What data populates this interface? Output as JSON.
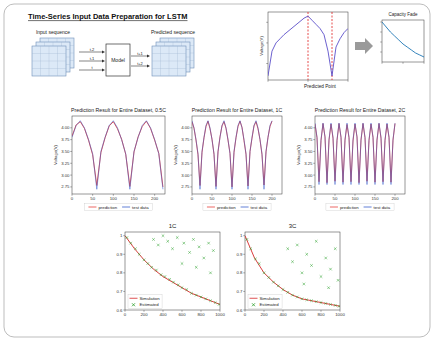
{
  "slide_title": "Time-Series Input Data Preparation for LSTM",
  "diagram": {
    "input_label": "Input sequence",
    "model_label": "Model",
    "output_label": "Predicted sequence",
    "input_steps": [
      "t-2",
      "t-1",
      "t"
    ],
    "output_steps": [
      "t+1",
      "t+2"
    ]
  },
  "chart_data": [
    {
      "type": "line",
      "y_label": "Voltage(V)",
      "annotation": "Predicted Point",
      "x": [
        0,
        5,
        10,
        15,
        20,
        25,
        30,
        35,
        40,
        45,
        50,
        55,
        60,
        65,
        70,
        75,
        80,
        85,
        90,
        95,
        100
      ],
      "series": [
        {
          "color": "#5b4fc9",
          "values": [
            2.7,
            3.3,
            3.5,
            3.6,
            3.7,
            3.78,
            3.86,
            3.94,
            4.02,
            4.1,
            4.15,
            4.05,
            3.95,
            3.85,
            3.7,
            3.3,
            2.7,
            3.4,
            3.6,
            3.75,
            3.85
          ]
        }
      ],
      "reference_lines_x": [
        50,
        80
      ],
      "xlim": [
        0,
        100
      ],
      "ylim": [
        2.6,
        4.25
      ],
      "xticks": [
        0,
        50,
        100
      ],
      "yticks": [
        3,
        3.5,
        4
      ],
      "tick_labels": false
    },
    {
      "type": "line",
      "title": "Capacity Fade",
      "x": [
        0,
        100,
        200,
        300,
        400,
        500,
        600,
        700,
        800,
        900,
        1000
      ],
      "series": [
        {
          "color": "#1f77b4",
          "values": [
            1.0,
            0.95,
            0.9,
            0.86,
            0.82,
            0.78,
            0.75,
            0.72,
            0.69,
            0.67,
            0.65
          ]
        }
      ],
      "xlim": [
        0,
        1000
      ],
      "ylim": [
        0.6,
        1.02
      ],
      "xticks": [
        0,
        500,
        1000
      ],
      "yticks": [
        0.7,
        0.8,
        0.9,
        1
      ],
      "tick_labels": false
    },
    {
      "type": "line",
      "title": "Prediction Result for Entire Dataset, 0.5C",
      "y_label": "Voltage(V)",
      "legend": "bottom",
      "x": [
        0,
        10,
        20,
        30,
        40,
        50,
        60,
        70,
        80,
        90,
        100,
        110,
        120,
        130,
        140,
        150,
        160,
        170,
        180,
        190,
        200,
        210,
        220
      ],
      "series": [
        {
          "name": "prediction",
          "color": "#e8413c",
          "values": [
            3.82,
            4.06,
            4.13,
            3.99,
            3.74,
            3.43,
            2.78,
            3.48,
            3.79,
            4.04,
            4.13,
            3.98,
            3.76,
            3.44,
            2.76,
            3.49,
            3.81,
            4.03,
            4.14,
            3.99,
            3.74,
            3.46,
            2.75
          ]
        },
        {
          "name": "test data",
          "color": "#3a5fcd",
          "values": [
            3.8,
            4.05,
            4.15,
            4.0,
            3.75,
            3.45,
            2.7,
            3.5,
            3.8,
            4.05,
            4.15,
            4.0,
            3.75,
            3.45,
            2.7,
            3.5,
            3.8,
            4.05,
            4.15,
            4.0,
            3.75,
            3.45,
            2.7
          ]
        }
      ],
      "xlim": [
        0,
        225
      ],
      "ylim": [
        2.6,
        4.25
      ],
      "xticks": [
        0,
        50,
        100,
        150,
        200
      ],
      "yticks": [
        2.75,
        {
          "value": 3,
          "label": "3.00"
        },
        3.25,
        {
          "value": 3.5,
          "label": "3.50"
        },
        3.75,
        {
          "value": 4,
          "label": "4.00"
        }
      ]
    },
    {
      "type": "line",
      "title": "Prediction Result for Entire Dataset, 1C",
      "y_label": "Voltage(V)",
      "legend": "bottom",
      "x": [
        0,
        5,
        10,
        15,
        20,
        25,
        30,
        35,
        40,
        45,
        50,
        55,
        60,
        65,
        70,
        75,
        80,
        85,
        90,
        95,
        100,
        105,
        110,
        115,
        120,
        125,
        130,
        135,
        140,
        145,
        150,
        155,
        160,
        165,
        170,
        175,
        180,
        185,
        190,
        195,
        200
      ],
      "series": [
        {
          "name": "prediction",
          "color": "#e8413c",
          "values": [
            4.13,
            3.99,
            3.74,
            3.43,
            2.78,
            3.48,
            3.79,
            4.03,
            4.14,
            3.98,
            3.76,
            3.44,
            2.76,
            3.49,
            3.81,
            4.04,
            4.13,
            3.99,
            3.74,
            3.46,
            2.75,
            3.48,
            3.79,
            4.03,
            4.14,
            4.01,
            3.73,
            3.44,
            2.77,
            3.5,
            3.78,
            4.04,
            4.13,
            3.98,
            3.75,
            3.43,
            2.79,
            3.49,
            3.8,
            4.03,
            4.14
          ]
        },
        {
          "name": "test data",
          "color": "#3a5fcd",
          "values": [
            4.15,
            4.0,
            3.75,
            3.45,
            2.7,
            3.5,
            3.8,
            4.05,
            4.15,
            4.0,
            3.75,
            3.45,
            2.7,
            3.5,
            3.8,
            4.05,
            4.15,
            4.0,
            3.75,
            3.45,
            2.7,
            3.5,
            3.8,
            4.05,
            4.15,
            4.0,
            3.75,
            3.45,
            2.7,
            3.5,
            3.8,
            4.05,
            4.15,
            4.0,
            3.75,
            3.45,
            2.7,
            3.5,
            3.8,
            4.05,
            4.15
          ]
        }
      ],
      "xlim": [
        0,
        225
      ],
      "ylim": [
        2.6,
        4.25
      ],
      "xticks": [
        0,
        50,
        100,
        150,
        200
      ],
      "yticks": [
        2.75,
        {
          "value": 3,
          "label": "3.00"
        },
        3.25,
        {
          "value": 3.5,
          "label": "3.50"
        },
        3.75,
        {
          "value": 4,
          "label": "4.00"
        }
      ]
    },
    {
      "type": "line",
      "title": "Prediction Result for Entire Dataset, 2C",
      "y_label": "Voltage(V)",
      "legend": "bottom",
      "x": [
        0,
        5,
        10,
        15,
        20,
        25,
        30,
        35,
        40,
        45,
        50,
        55,
        60,
        65,
        70,
        75,
        80,
        85,
        90,
        95,
        100,
        105,
        110,
        115,
        120,
        125,
        130,
        135,
        140,
        145,
        150,
        155,
        160,
        165,
        170,
        175,
        180,
        185,
        190,
        195,
        200
      ],
      "series": [
        {
          "name": "prediction",
          "color": "#e8413c",
          "values": [
            4.08,
            3.79,
            2.86,
            3.73,
            4.09,
            3.81,
            2.84,
            3.74,
            4.08,
            3.78,
            2.87,
            3.73,
            4.09,
            3.8,
            2.85,
            3.74,
            4.07,
            3.79,
            2.86,
            3.72,
            4.08,
            3.81,
            2.84,
            3.74,
            4.09,
            3.79,
            2.87,
            3.73,
            4.08,
            3.8,
            2.85,
            3.74,
            4.09,
            3.78,
            2.86,
            3.73,
            4.08,
            3.8,
            2.85,
            3.74,
            4.09
          ]
        },
        {
          "name": "test data",
          "color": "#3a5fcd",
          "values": [
            4.1,
            3.8,
            2.8,
            3.75,
            4.1,
            3.8,
            2.8,
            3.75,
            4.1,
            3.8,
            2.8,
            3.75,
            4.1,
            3.8,
            2.8,
            3.75,
            4.1,
            3.8,
            2.8,
            3.75,
            4.1,
            3.8,
            2.8,
            3.75,
            4.1,
            3.8,
            2.8,
            3.75,
            4.1,
            3.8,
            2.8,
            3.75,
            4.1,
            3.8,
            2.8,
            3.75,
            4.1,
            3.8,
            2.8,
            3.75,
            4.1
          ]
        }
      ],
      "xlim": [
        0,
        225
      ],
      "ylim": [
        2.6,
        4.25
      ],
      "xticks": [
        0,
        50,
        100,
        150,
        200
      ],
      "yticks": [
        2.75,
        {
          "value": 3,
          "label": "3.00"
        },
        3.25,
        {
          "value": 3.5,
          "label": "3.50"
        },
        3.75,
        {
          "value": 4,
          "label": "4.00"
        }
      ]
    },
    {
      "type": "scatter",
      "title": "1C",
      "legend": "lower left",
      "series": [
        {
          "name": "Simulation",
          "type": "line",
          "color": "#d62728",
          "x": [
            0,
            100,
            200,
            300,
            400,
            500,
            600,
            700,
            800,
            900,
            1000
          ],
          "values": [
            1.0,
            0.93,
            0.87,
            0.82,
            0.78,
            0.75,
            0.72,
            0.69,
            0.67,
            0.65,
            0.63
          ]
        },
        {
          "name": "Estimated",
          "type": "scatter",
          "marker": "x",
          "color": "#2ca02c",
          "x": [
            20,
            60,
            110,
            150,
            200,
            240,
            280,
            330,
            380,
            420,
            470,
            510,
            560,
            600,
            650,
            700,
            750,
            800,
            850,
            900,
            950,
            990,
            300,
            350,
            400,
            450,
            500,
            550,
            620,
            680,
            720,
            780,
            830,
            880,
            930,
            600,
            750,
            900
          ],
          "values": [
            0.99,
            0.96,
            0.93,
            0.9,
            0.87,
            0.85,
            0.83,
            0.815,
            0.79,
            0.78,
            0.765,
            0.75,
            0.735,
            0.72,
            0.71,
            0.69,
            0.68,
            0.67,
            0.66,
            0.65,
            0.64,
            0.63,
            0.98,
            0.95,
            1.0,
            0.97,
            0.93,
            0.99,
            0.96,
            0.91,
            0.98,
            0.94,
            0.88,
            0.96,
            0.92,
            0.85,
            0.83,
            0.8
          ]
        }
      ],
      "xlim": [
        0,
        1000
      ],
      "ylim": [
        0.6,
        1.02
      ],
      "xticks": [
        0,
        200,
        400,
        600,
        800,
        1000
      ],
      "yticks": [
        0.6,
        0.7,
        0.8,
        0.9,
        1
      ]
    },
    {
      "type": "scatter",
      "title": "3C",
      "legend": "lower left",
      "series": [
        {
          "name": "Simulation",
          "type": "line",
          "color": "#d62728",
          "x": [
            0,
            100,
            200,
            300,
            400,
            500,
            600,
            700,
            800,
            900,
            1000
          ],
          "values": [
            1.0,
            0.88,
            0.8,
            0.75,
            0.71,
            0.68,
            0.66,
            0.65,
            0.64,
            0.63,
            0.62
          ]
        },
        {
          "name": "Estimated",
          "type": "scatter",
          "marker": "x",
          "color": "#2ca02c",
          "x": [
            20,
            60,
            110,
            150,
            200,
            250,
            300,
            350,
            400,
            450,
            500,
            550,
            600,
            650,
            700,
            750,
            800,
            850,
            900,
            950,
            990,
            450,
            500,
            550,
            600,
            650,
            700,
            750,
            800,
            850,
            900,
            950,
            980,
            620,
            880
          ],
          "values": [
            0.98,
            0.93,
            0.875,
            0.85,
            0.8,
            0.775,
            0.75,
            0.73,
            0.71,
            0.695,
            0.68,
            0.67,
            0.66,
            0.655,
            0.65,
            0.645,
            0.64,
            0.635,
            0.63,
            0.625,
            0.62,
            0.93,
            0.86,
            0.95,
            0.8,
            0.9,
            0.84,
            0.97,
            0.78,
            0.88,
            0.82,
            0.93,
            0.76,
            0.74,
            0.72
          ]
        }
      ],
      "xlim": [
        0,
        1000
      ],
      "ylim": [
        0.6,
        1.02
      ],
      "xticks": [
        0,
        200,
        400,
        600,
        800,
        1000
      ],
      "yticks": [
        0.6,
        0.7,
        0.8,
        0.9,
        1
      ]
    }
  ]
}
